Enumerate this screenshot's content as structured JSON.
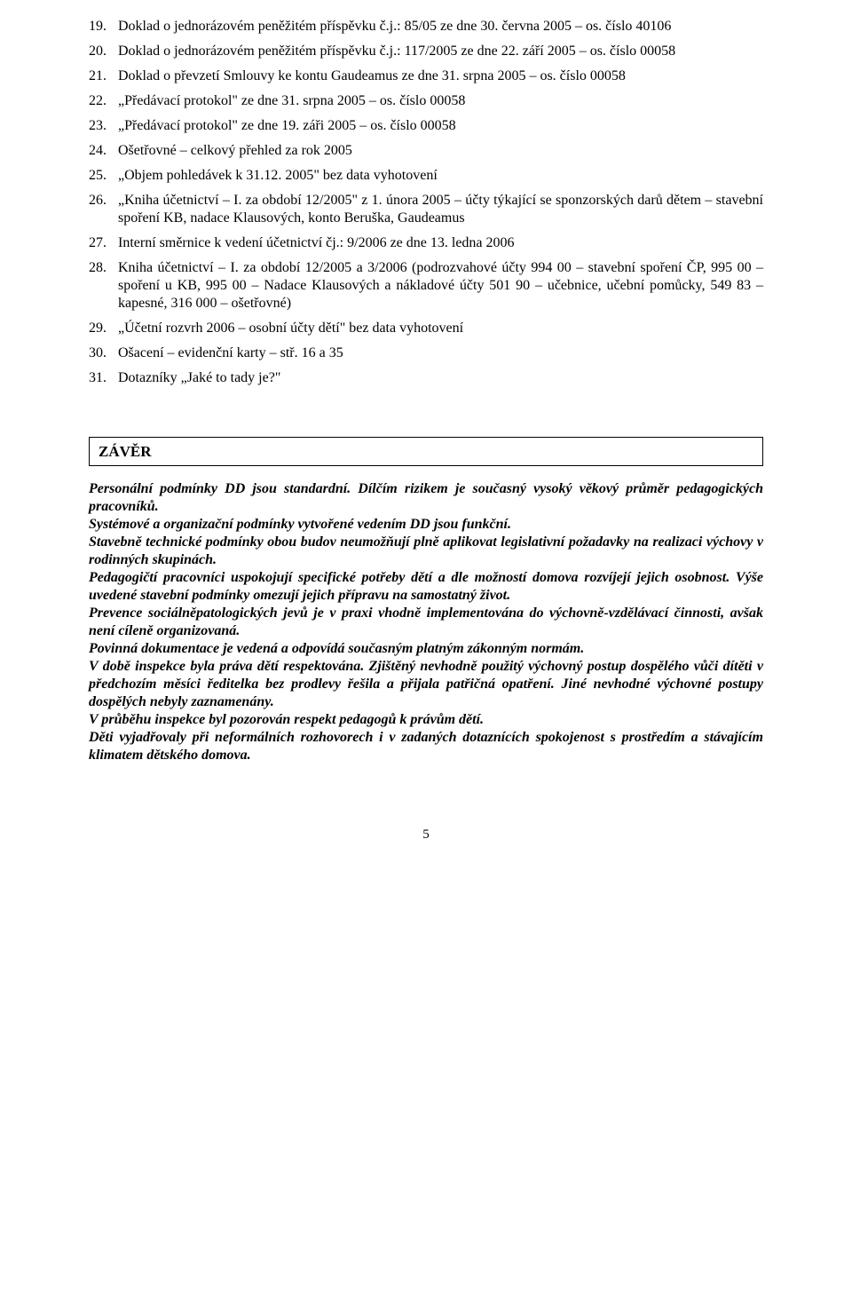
{
  "list": [
    {
      "n": "19.",
      "t": "Doklad o jednorázovém peněžitém příspěvku č.j.: 85/05 ze dne 30. června 2005 – os. číslo 40106"
    },
    {
      "n": "20.",
      "t": "Doklad o jednorázovém peněžitém příspěvku č.j.: 117/2005 ze dne 22. září 2005 – os. číslo 00058"
    },
    {
      "n": "21.",
      "t": "Doklad o převzetí Smlouvy ke kontu Gaudeamus ze dne 31. srpna 2005 – os. číslo 00058"
    },
    {
      "n": "22.",
      "t": "„Předávací protokol\" ze dne 31. srpna 2005 – os. číslo 00058"
    },
    {
      "n": "23.",
      "t": "„Předávací protokol\" ze dne 19. záři 2005 – os. číslo 00058"
    },
    {
      "n": "24.",
      "t": "Ošetřovné – celkový přehled za rok 2005"
    },
    {
      "n": "25.",
      "t": "„Objem pohledávek k 31.12. 2005\" bez data vyhotovení"
    },
    {
      "n": "26.",
      "t": "„Kniha účetnictví – I. za období 12/2005\" z 1. února 2005 – účty týkající se sponzorských  darů dětem – stavební spoření KB, nadace Klausových, konto Beruška, Gaudeamus"
    },
    {
      "n": "27.",
      "t": "Interní směrnice k vedení účetnictví čj.: 9/2006 ze dne 13. ledna 2006"
    },
    {
      "n": "28.",
      "t": "Kniha účetnictví – I. za období 12/2005 a 3/2006 (podrozvahové účty 994 00 – stavební spoření ČP, 995 00 – spoření u KB, 995 00 – Nadace Klausových a nákladové účty 501 90 – učebnice, učební pomůcky, 549 83 – kapesné, 316 000 – ošetřovné)"
    },
    {
      "n": "29.",
      "t": "„Účetní rozvrh 2006 – osobní účty dětí\" bez data vyhotovení"
    },
    {
      "n": "30.",
      "t": "Ošacení – evidenční karty – stř. 16 a 35"
    },
    {
      "n": "31.",
      "t": "Dotazníky „Jaké to tady je?\""
    }
  ],
  "section_title": "ZÁVĚR",
  "paras": [
    "Personální podmínky DD jsou standardní. Dílčím rizikem je současný vysoký věkový průměr pedagogických pracovníků.",
    "Systémové a organizační podmínky vytvořené vedením DD jsou funkční.",
    "Stavebně technické podmínky obou budov neumožňují plně aplikovat legislativní požadavky na realizaci výchovy v rodinných skupinách.",
    "Pedagogičtí pracovníci uspokojují specifické potřeby dětí a dle možností domova rozvíjejí jejich osobnost. Výše uvedené stavební podmínky omezují jejich přípravu na samostatný život.",
    "Prevence sociálněpatologických jevů je v praxi vhodně implementována do výchovně-vzdělávací činnosti, avšak není cíleně organizovaná.",
    "Povinná dokumentace je vedená a odpovídá současným platným zákonným normám.",
    "V době inspekce byla práva dětí respektována. Zjištěný nevhodně použitý výchovný postup dospělého vůči dítěti v předchozím měsíci ředitelka bez prodlevy řešila a přijala patřičná opatření. Jiné nevhodné výchovné postupy dospělých nebyly zaznamenány.",
    "V průběhu inspekce byl pozorován respekt pedagogů k právům dětí.",
    "Děti vyjadřovaly při neformálních rozhovorech i v zadaných dotaznících spokojenost s prostředím a stávajícím klimatem dětského domova."
  ],
  "page_number": "5"
}
